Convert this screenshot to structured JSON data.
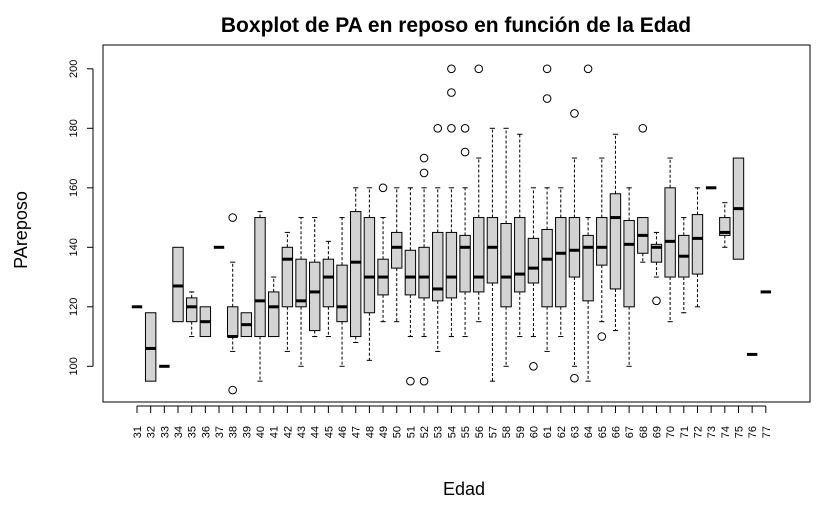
{
  "chart_data": {
    "type": "boxplot",
    "title": "Boxplot de PA en reposo en función de la Edad",
    "xlabel": "Edad",
    "ylabel": "PAreposo",
    "ylim": [
      88,
      208
    ],
    "yticks": [
      100,
      120,
      140,
      160,
      180,
      200
    ],
    "grid": false,
    "colors": {
      "box_fill": "#d3d3d3",
      "stroke": "#000000"
    },
    "categories": [
      "31",
      "32",
      "33",
      "34",
      "35",
      "36",
      "37",
      "38",
      "39",
      "40",
      "41",
      "42",
      "43",
      "44",
      "45",
      "46",
      "47",
      "48",
      "49",
      "50",
      "51",
      "52",
      "53",
      "54",
      "55",
      "56",
      "57",
      "58",
      "59",
      "60",
      "61",
      "62",
      "63",
      "64",
      "65",
      "66",
      "67",
      "68",
      "69",
      "70",
      "71",
      "72",
      "73",
      "74",
      "75",
      "76",
      "77"
    ],
    "boxes": [
      {
        "min": 120,
        "q1": 120,
        "median": 120,
        "q3": 120,
        "max": 120,
        "outliers": []
      },
      {
        "min": 95,
        "q1": 95,
        "median": 106,
        "q3": 118,
        "max": 118,
        "outliers": []
      },
      {
        "min": 100,
        "q1": 100,
        "median": 100,
        "q3": 100,
        "max": 100,
        "outliers": []
      },
      {
        "min": 115,
        "q1": 115,
        "median": 127,
        "q3": 140,
        "max": 140,
        "outliers": []
      },
      {
        "min": 110,
        "q1": 115,
        "median": 120,
        "q3": 123,
        "max": 125,
        "outliers": []
      },
      {
        "min": 110,
        "q1": 110,
        "median": 115,
        "q3": 120,
        "max": 120,
        "outliers": []
      },
      {
        "min": 140,
        "q1": 140,
        "median": 140,
        "q3": 140,
        "max": 140,
        "outliers": []
      },
      {
        "min": 105,
        "q1": 110,
        "median": 110,
        "q3": 120,
        "max": 135,
        "outliers": [
          150,
          92
        ]
      },
      {
        "min": 110,
        "q1": 110,
        "median": 114,
        "q3": 118,
        "max": 118,
        "outliers": []
      },
      {
        "min": 95,
        "q1": 110,
        "median": 122,
        "q3": 150,
        "max": 152,
        "outliers": []
      },
      {
        "min": 110,
        "q1": 110,
        "median": 120,
        "q3": 125,
        "max": 130,
        "outliers": []
      },
      {
        "min": 105,
        "q1": 120,
        "median": 136,
        "q3": 140,
        "max": 145,
        "outliers": []
      },
      {
        "min": 100,
        "q1": 120,
        "median": 122,
        "q3": 136,
        "max": 150,
        "outliers": []
      },
      {
        "min": 110,
        "q1": 112,
        "median": 125,
        "q3": 135,
        "max": 150,
        "outliers": []
      },
      {
        "min": 110,
        "q1": 120,
        "median": 130,
        "q3": 136,
        "max": 142,
        "outliers": []
      },
      {
        "min": 100,
        "q1": 115,
        "median": 120,
        "q3": 134,
        "max": 150,
        "outliers": []
      },
      {
        "min": 108,
        "q1": 110,
        "median": 135,
        "q3": 152,
        "max": 160,
        "outliers": []
      },
      {
        "min": 102,
        "q1": 118,
        "median": 130,
        "q3": 150,
        "max": 160,
        "outliers": []
      },
      {
        "min": 115,
        "q1": 124,
        "median": 130,
        "q3": 136,
        "max": 150,
        "outliers": [
          160
        ]
      },
      {
        "min": 115,
        "q1": 133,
        "median": 140,
        "q3": 145,
        "max": 160,
        "outliers": []
      },
      {
        "min": 110,
        "q1": 124,
        "median": 130,
        "q3": 139,
        "max": 160,
        "outliers": [
          95
        ]
      },
      {
        "min": 110,
        "q1": 123,
        "median": 130,
        "q3": 140,
        "max": 160,
        "outliers": [
          165,
          170,
          95
        ]
      },
      {
        "min": 105,
        "q1": 122,
        "median": 126,
        "q3": 145,
        "max": 160,
        "outliers": [
          180
        ]
      },
      {
        "min": 110,
        "q1": 123,
        "median": 130,
        "q3": 145,
        "max": 160,
        "outliers": [
          180,
          192,
          200
        ]
      },
      {
        "min": 110,
        "q1": 125,
        "median": 140,
        "q3": 144,
        "max": 160,
        "outliers": [
          172,
          180
        ]
      },
      {
        "min": 115,
        "q1": 125,
        "median": 130,
        "q3": 150,
        "max": 170,
        "outliers": [
          200
        ]
      },
      {
        "min": 95,
        "q1": 128,
        "median": 140,
        "q3": 150,
        "max": 180,
        "outliers": []
      },
      {
        "min": 100,
        "q1": 120,
        "median": 130,
        "q3": 148,
        "max": 180,
        "outliers": []
      },
      {
        "min": 110,
        "q1": 125,
        "median": 131,
        "q3": 150,
        "max": 178,
        "outliers": []
      },
      {
        "min": 110,
        "q1": 128,
        "median": 133,
        "q3": 143,
        "max": 160,
        "outliers": [
          100
        ]
      },
      {
        "min": 105,
        "q1": 120,
        "median": 136,
        "q3": 146,
        "max": 160,
        "outliers": [
          190,
          200
        ]
      },
      {
        "min": 110,
        "q1": 120,
        "median": 138,
        "q3": 150,
        "max": 160,
        "outliers": []
      },
      {
        "min": 100,
        "q1": 130,
        "median": 139,
        "q3": 150,
        "max": 170,
        "outliers": [
          185,
          96
        ]
      },
      {
        "min": 95,
        "q1": 122,
        "median": 140,
        "q3": 144,
        "max": 150,
        "outliers": [
          200
        ]
      },
      {
        "min": 115,
        "q1": 134,
        "median": 140,
        "q3": 150,
        "max": 170,
        "outliers": [
          110
        ]
      },
      {
        "min": 112,
        "q1": 126,
        "median": 150,
        "q3": 158,
        "max": 178,
        "outliers": []
      },
      {
        "min": 100,
        "q1": 120,
        "median": 141,
        "q3": 149,
        "max": 160,
        "outliers": []
      },
      {
        "min": 135,
        "q1": 138,
        "median": 144,
        "q3": 150,
        "max": 150,
        "outliers": [
          180
        ]
      },
      {
        "min": 130,
        "q1": 135,
        "median": 140,
        "q3": 141,
        "max": 145,
        "outliers": [
          122
        ]
      },
      {
        "min": 115,
        "q1": 130,
        "median": 142,
        "q3": 160,
        "max": 170,
        "outliers": []
      },
      {
        "min": 118,
        "q1": 130,
        "median": 137,
        "q3": 144,
        "max": 150,
        "outliers": []
      },
      {
        "min": 120,
        "q1": 131,
        "median": 143,
        "q3": 151,
        "max": 160,
        "outliers": []
      },
      {
        "min": 160,
        "q1": 160,
        "median": 160,
        "q3": 160,
        "max": 160,
        "outliers": []
      },
      {
        "min": 140,
        "q1": 144,
        "median": 145,
        "q3": 150,
        "max": 155,
        "outliers": []
      },
      {
        "min": 136,
        "q1": 136,
        "median": 153,
        "q3": 170,
        "max": 170,
        "outliers": []
      },
      {
        "min": 104,
        "q1": 104,
        "median": 104,
        "q3": 104,
        "max": 104,
        "outliers": []
      },
      {
        "min": 125,
        "q1": 125,
        "median": 125,
        "q3": 125,
        "max": 125,
        "outliers": []
      }
    ]
  }
}
